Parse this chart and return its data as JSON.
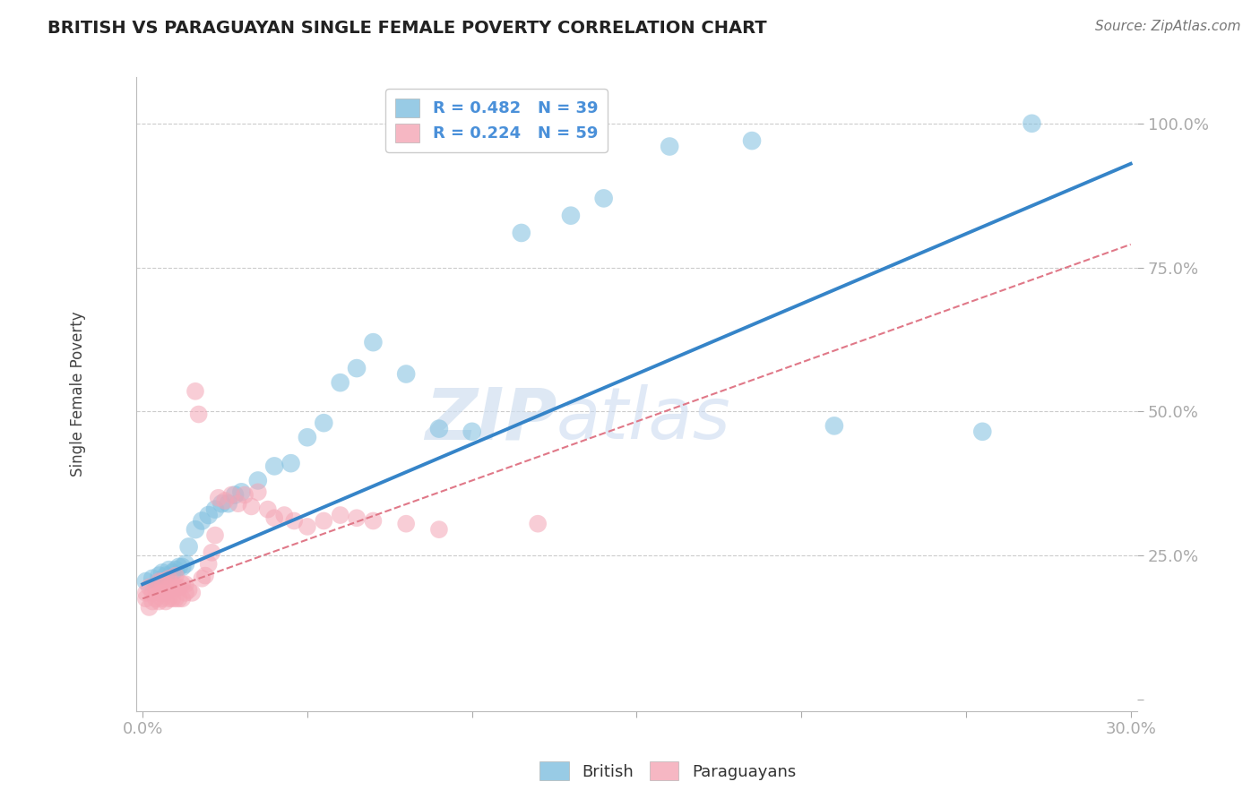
{
  "title": "BRITISH VS PARAGUAYAN SINGLE FEMALE POVERTY CORRELATION CHART",
  "source": "Source: ZipAtlas.com",
  "ylabel": "Single Female Poverty",
  "xlim": [
    -0.002,
    0.302
  ],
  "ylim": [
    -0.02,
    1.08
  ],
  "xticks": [
    0.0,
    0.05,
    0.1,
    0.15,
    0.2,
    0.25,
    0.3
  ],
  "xticklabels": [
    "0.0%",
    "",
    "",
    "",
    "",
    "",
    "30.0%"
  ],
  "yticks": [
    0.0,
    0.25,
    0.5,
    0.75,
    1.0
  ],
  "yticklabels": [
    "",
    "25.0%",
    "50.0%",
    "75.0%",
    "100.0%"
  ],
  "grid_color": "#cccccc",
  "background_color": "#ffffff",
  "watermark": "ZIPatlas",
  "legend_R_british": "R = 0.482",
  "legend_N_british": "N = 39",
  "legend_R_paraguayan": "R = 0.224",
  "legend_N_paraguayan": "N = 59",
  "british_color": "#7fbfdf",
  "paraguayan_color": "#f4a5b5",
  "british_line_color": "#3584c8",
  "paraguayan_line_color": "#e07888",
  "british_line_x0": 0.0,
  "british_line_y0": 0.2,
  "british_line_x1": 0.3,
  "british_line_y1": 0.93,
  "paraguayan_line_x0": 0.0,
  "paraguayan_line_y0": 0.175,
  "paraguayan_line_x1": 0.3,
  "paraguayan_line_y1": 0.79,
  "british_x": [
    0.001,
    0.003,
    0.005,
    0.006,
    0.007,
    0.008,
    0.009,
    0.01,
    0.011,
    0.012,
    0.013,
    0.014,
    0.016,
    0.018,
    0.02,
    0.022,
    0.024,
    0.026,
    0.028,
    0.03,
    0.035,
    0.04,
    0.045,
    0.05,
    0.055,
    0.06,
    0.065,
    0.07,
    0.08,
    0.09,
    0.1,
    0.115,
    0.13,
    0.14,
    0.16,
    0.185,
    0.21,
    0.255,
    0.27
  ],
  "british_y": [
    0.205,
    0.21,
    0.215,
    0.22,
    0.215,
    0.225,
    0.22,
    0.225,
    0.23,
    0.23,
    0.235,
    0.265,
    0.295,
    0.31,
    0.32,
    0.33,
    0.34,
    0.34,
    0.355,
    0.36,
    0.38,
    0.405,
    0.41,
    0.455,
    0.48,
    0.55,
    0.575,
    0.62,
    0.565,
    0.47,
    0.465,
    0.81,
    0.84,
    0.87,
    0.96,
    0.97,
    0.475,
    0.465,
    1.0
  ],
  "paraguayan_x": [
    0.001,
    0.001,
    0.002,
    0.002,
    0.003,
    0.003,
    0.004,
    0.004,
    0.005,
    0.005,
    0.005,
    0.006,
    0.006,
    0.006,
    0.007,
    0.007,
    0.007,
    0.008,
    0.008,
    0.008,
    0.009,
    0.009,
    0.01,
    0.01,
    0.01,
    0.011,
    0.011,
    0.012,
    0.012,
    0.013,
    0.013,
    0.014,
    0.015,
    0.016,
    0.017,
    0.018,
    0.019,
    0.02,
    0.021,
    0.022,
    0.023,
    0.025,
    0.027,
    0.029,
    0.031,
    0.033,
    0.035,
    0.038,
    0.04,
    0.043,
    0.046,
    0.05,
    0.055,
    0.06,
    0.065,
    0.07,
    0.08,
    0.09,
    0.12
  ],
  "paraguayan_y": [
    0.175,
    0.185,
    0.16,
    0.195,
    0.17,
    0.185,
    0.175,
    0.19,
    0.17,
    0.185,
    0.205,
    0.175,
    0.19,
    0.205,
    0.17,
    0.185,
    0.2,
    0.175,
    0.195,
    0.21,
    0.175,
    0.2,
    0.175,
    0.195,
    0.215,
    0.175,
    0.195,
    0.175,
    0.2,
    0.185,
    0.2,
    0.19,
    0.185,
    0.535,
    0.495,
    0.21,
    0.215,
    0.235,
    0.255,
    0.285,
    0.35,
    0.345,
    0.355,
    0.34,
    0.355,
    0.335,
    0.36,
    0.33,
    0.315,
    0.32,
    0.31,
    0.3,
    0.31,
    0.32,
    0.315,
    0.31,
    0.305,
    0.295,
    0.305
  ]
}
